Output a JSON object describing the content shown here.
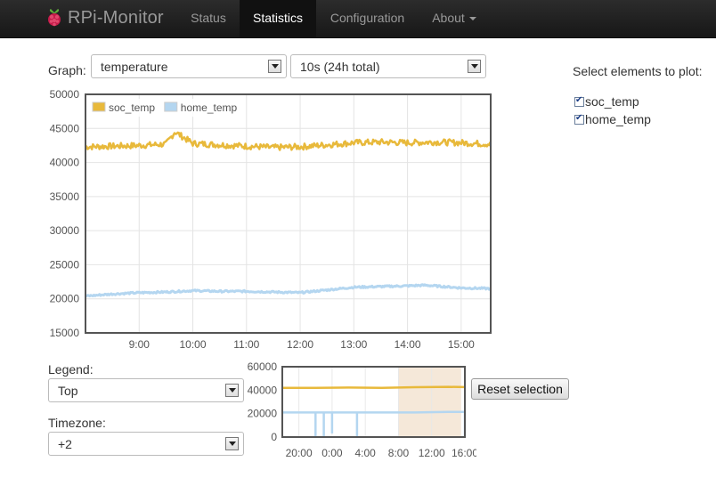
{
  "navbar": {
    "brand": "RPi-Monitor",
    "items": [
      {
        "label": "Status",
        "active": false
      },
      {
        "label": "Statistics",
        "active": true
      },
      {
        "label": "Configuration",
        "active": false
      },
      {
        "label": "About",
        "active": false,
        "dropdown": true
      }
    ]
  },
  "controls": {
    "graph_label": "Graph:",
    "graph_value": "temperature",
    "period_value": "10s (24h total)",
    "legend_label": "Legend:",
    "legend_value": "Top",
    "timezone_label": "Timezone:",
    "timezone_value": "+2",
    "reset_button": "Reset selection"
  },
  "elements_panel": {
    "title": "Select elements to plot:",
    "items": [
      {
        "label": "soc_temp",
        "checked": true
      },
      {
        "label": "home_temp",
        "checked": true
      }
    ]
  },
  "colors": {
    "soc_temp": "#e8b93b",
    "home_temp": "#b4d6f0"
  },
  "chart_data": [
    {
      "type": "line",
      "x_ticks": [
        "9:00",
        "10:00",
        "11:00",
        "12:00",
        "13:00",
        "14:00",
        "15:00"
      ],
      "xlim": [
        "8:00",
        "15:33"
      ],
      "ylim": [
        15000,
        50000
      ],
      "y_ticks": [
        15000,
        20000,
        25000,
        30000,
        35000,
        40000,
        45000,
        50000
      ],
      "grid": true,
      "legend": "top-left",
      "series": [
        {
          "name": "soc_temp",
          "x": [
            "8:00",
            "8:30",
            "9:00",
            "9:30",
            "9:40",
            "10:00",
            "10:30",
            "11:00",
            "11:30",
            "12:00",
            "12:30",
            "13:00",
            "13:30",
            "14:00",
            "14:30",
            "15:00",
            "15:33"
          ],
          "values": [
            42300,
            42400,
            42500,
            42700,
            44500,
            42800,
            42600,
            42400,
            42200,
            42300,
            42600,
            42900,
            43000,
            42900,
            43000,
            42900,
            42700
          ]
        },
        {
          "name": "home_temp",
          "x": [
            "8:00",
            "8:30",
            "9:00",
            "9:30",
            "10:00",
            "10:30",
            "11:00",
            "11:30",
            "12:00",
            "12:30",
            "13:00",
            "13:30",
            "14:00",
            "14:20",
            "14:40",
            "15:00",
            "15:33"
          ],
          "values": [
            20400,
            20700,
            20900,
            21000,
            21200,
            21100,
            21100,
            21000,
            20900,
            21300,
            21700,
            21800,
            21900,
            22000,
            21800,
            21600,
            21500
          ]
        }
      ]
    },
    {
      "type": "line",
      "x_ticks": [
        "20:00",
        "0:00",
        "4:00",
        "8:00",
        "12:00",
        "16:00"
      ],
      "xlim": [
        "18:00",
        "16:00"
      ],
      "ylim": [
        0,
        60000
      ],
      "y_ticks": [
        0,
        20000,
        40000,
        60000
      ],
      "selection": [
        "8:00",
        "15:33"
      ],
      "series": [
        {
          "name": "soc_temp",
          "x": [
            "18:00",
            "22:00",
            "2:00",
            "6:00",
            "10:00",
            "14:00",
            "16:00"
          ],
          "values": [
            42000,
            42000,
            42200,
            42000,
            42500,
            42800,
            42600
          ]
        },
        {
          "name": "home_temp",
          "x": [
            "18:00",
            "21:00",
            "22:00",
            "22:00",
            "22:00",
            "23:00",
            "23:00",
            "23:00",
            "0:00",
            "0:00",
            "0:00",
            "3:00",
            "3:00",
            "3:00",
            "6:00",
            "10:00",
            "14:00",
            "16:00",
            "16:00"
          ],
          "values": [
            21000,
            21000,
            21000,
            0,
            21000,
            21000,
            0,
            21000,
            21000,
            3000,
            21000,
            21000,
            0,
            21000,
            21000,
            21000,
            21500,
            21500,
            0
          ]
        }
      ]
    }
  ]
}
